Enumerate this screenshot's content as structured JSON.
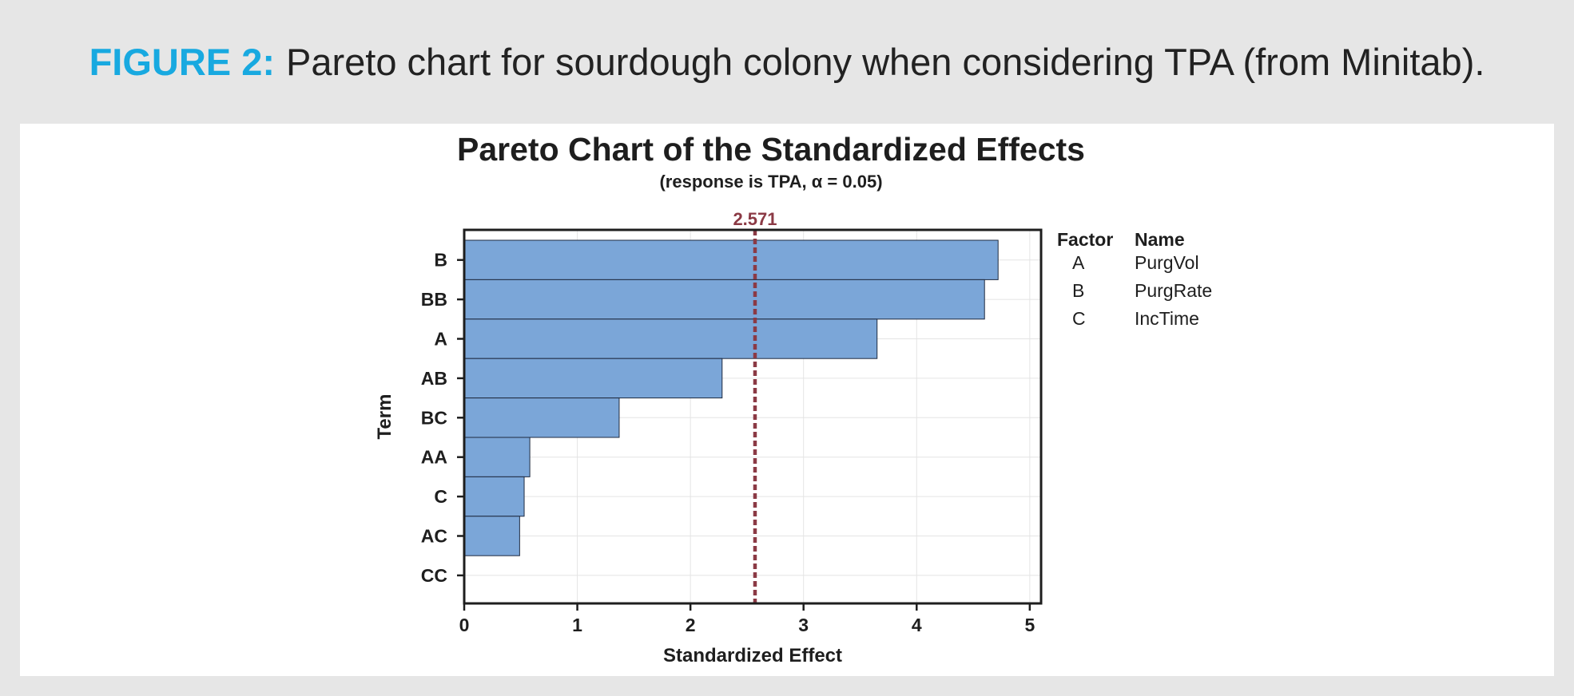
{
  "caption": {
    "label": "FIGURE 2:",
    "text": "Pareto chart for sourdough colony when considering TPA (from Minitab)."
  },
  "chart_data": {
    "type": "bar",
    "orientation": "horizontal",
    "title": "Pareto Chart of the Standardized Effects",
    "subtitle": "(response is TPA, α = 0.05)",
    "xlabel": "Standardized Effect",
    "ylabel": "Term",
    "categories": [
      "B",
      "BB",
      "A",
      "AB",
      "BC",
      "AA",
      "C",
      "AC",
      "CC"
    ],
    "values": [
      4.72,
      4.6,
      3.65,
      2.28,
      1.37,
      0.58,
      0.53,
      0.49,
      0.0
    ],
    "xlim": [
      0,
      5.1
    ],
    "xticks": [
      0,
      1,
      2,
      3,
      4,
      5
    ],
    "grid": true,
    "reference_line": {
      "value": 2.571,
      "label": "2.571",
      "color": "#8b3a45"
    },
    "bar_color": "#7ba6d8",
    "legend": {
      "headers": [
        "Factor",
        "Name"
      ],
      "rows": [
        {
          "factor": "A",
          "name": "PurgVol"
        },
        {
          "factor": "B",
          "name": "PurgRate"
        },
        {
          "factor": "C",
          "name": "IncTime"
        }
      ]
    }
  }
}
